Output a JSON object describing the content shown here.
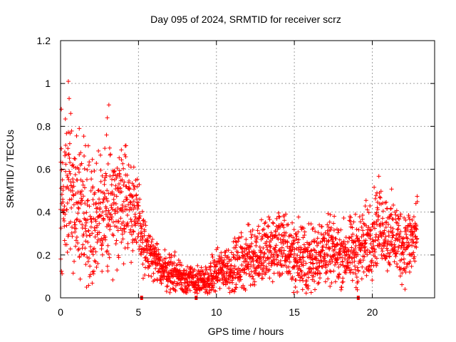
{
  "chart_data": {
    "type": "scatter",
    "title": "Day 095 of 2024, SRMTID for receiver scrz",
    "xlabel": "GPS time / hours",
    "ylabel": "SRMTID / TECUs",
    "xlim": [
      0,
      24
    ],
    "ylim": [
      0,
      1.2
    ],
    "x_ticks": [
      0,
      5,
      10,
      15,
      20
    ],
    "x_tick_labels": [
      "0",
      "5",
      "10",
      "15",
      "20"
    ],
    "y_ticks": [
      0,
      0.2,
      0.4,
      0.6,
      0.8,
      1.0,
      1.2
    ],
    "y_tick_labels": [
      "0",
      "0.2",
      "0.4",
      "0.6",
      "0.8",
      "1",
      "1.2"
    ],
    "grid": true,
    "marker": "plus",
    "series": [
      {
        "name": "SRMTID",
        "color": "#ff0000",
        "sampling_interval_hours": 0.01,
        "trend": {
          "x": [
            0,
            0.2,
            0.5,
            1.0,
            1.5,
            2.0,
            2.5,
            3.0,
            3.5,
            4.0,
            4.5,
            5.0,
            5.5,
            6.0,
            6.5,
            7.0,
            7.5,
            8.0,
            8.5,
            9.0,
            9.5,
            10.0,
            10.5,
            11.0,
            11.5,
            12.0,
            12.5,
            13.0,
            13.5,
            14.0,
            14.5,
            15.0,
            15.5,
            16.0,
            16.5,
            17.0,
            17.5,
            18.0,
            18.5,
            19.0,
            19.5,
            20.0,
            20.5,
            21.0,
            21.5,
            22.0,
            22.5,
            22.9
          ],
          "y": [
            0.42,
            0.52,
            0.55,
            0.45,
            0.4,
            0.36,
            0.34,
            0.42,
            0.45,
            0.48,
            0.44,
            0.34,
            0.22,
            0.17,
            0.14,
            0.12,
            0.11,
            0.09,
            0.08,
            0.07,
            0.08,
            0.12,
            0.14,
            0.14,
            0.16,
            0.19,
            0.2,
            0.21,
            0.22,
            0.25,
            0.22,
            0.2,
            0.18,
            0.17,
            0.21,
            0.22,
            0.21,
            0.2,
            0.21,
            0.22,
            0.24,
            0.3,
            0.35,
            0.3,
            0.28,
            0.24,
            0.26,
            0.3
          ]
        },
        "spread": {
          "x": [
            0,
            2,
            4,
            5,
            6,
            9,
            12,
            15,
            18,
            20,
            23
          ],
          "y": [
            0.16,
            0.14,
            0.13,
            0.09,
            0.05,
            0.03,
            0.07,
            0.08,
            0.07,
            0.09,
            0.08
          ]
        },
        "peaks": [
          {
            "x": 0.05,
            "y": 0.88
          },
          {
            "x": 0.5,
            "y": 1.01
          },
          {
            "x": 0.55,
            "y": 0.93
          },
          {
            "x": 0.65,
            "y": 0.86
          },
          {
            "x": 1.2,
            "y": 0.79
          },
          {
            "x": 1.6,
            "y": 0.71
          },
          {
            "x": 3.1,
            "y": 0.9
          },
          {
            "x": 3.0,
            "y": 0.84
          },
          {
            "x": 2.95,
            "y": 0.76
          },
          {
            "x": 3.9,
            "y": 0.69
          },
          {
            "x": 4.2,
            "y": 0.71
          },
          {
            "x": 4.7,
            "y": 0.61
          },
          {
            "x": 14.0,
            "y": 0.38
          },
          {
            "x": 20.3,
            "y": 0.49
          },
          {
            "x": 22.8,
            "y": 0.44
          }
        ],
        "zero_points": [
          {
            "x": 5.2,
            "y": 0
          },
          {
            "x": 8.7,
            "y": 0
          },
          {
            "x": 19.1,
            "y": 0
          }
        ]
      }
    ]
  }
}
